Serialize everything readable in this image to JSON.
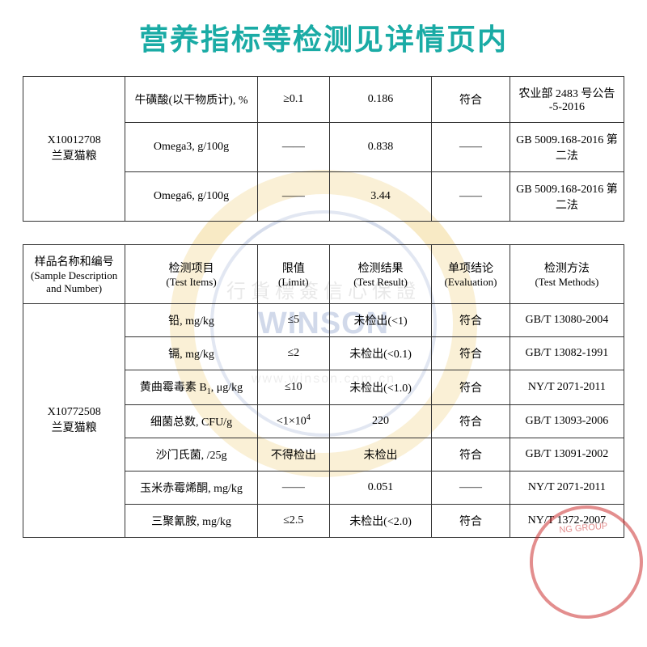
{
  "title": {
    "text": "营养指标等检测见详情页内",
    "color": "#1aaba5"
  },
  "watermark": {
    "logo_text": "WINSON",
    "chinese_text": "行貨標簽信心保證",
    "url_text": "www.winson.com.cn"
  },
  "seal": {
    "text_top": "NG   GROUP"
  },
  "table1": {
    "sample": {
      "id": "X10012708",
      "name": "兰夏猫粮"
    },
    "rows": [
      {
        "item": "牛磺酸(以干物质计), %",
        "limit": "≥0.1",
        "result": "0.186",
        "eval": "符合",
        "method": "农业部 2483 号公告 -5-2016"
      },
      {
        "item": "Omega3, g/100g",
        "limit": "——",
        "result": "0.838",
        "eval": "——",
        "method": "GB 5009.168-2016 第二法"
      },
      {
        "item": "Omega6, g/100g",
        "limit": "——",
        "result": "3.44",
        "eval": "——",
        "method": "GB 5009.168-2016 第二法"
      }
    ]
  },
  "table2": {
    "headers": {
      "sample_cn": "样品名称和编号",
      "sample_en": "(Sample Description and Number)",
      "item_cn": "检测项目",
      "item_en": "(Test Items)",
      "limit_cn": "限值",
      "limit_en": "(Limit)",
      "result_cn": "检测结果",
      "result_en": "(Test Result)",
      "eval_cn": "单项结论",
      "eval_en": "(Evaluation)",
      "method_cn": "检测方法",
      "method_en": "(Test Methods)"
    },
    "sample": {
      "id": "X10772508",
      "name": "兰夏猫粮"
    },
    "rows": [
      {
        "item": "铅, mg/kg",
        "limit": "≤5",
        "result": "未检出(<1)",
        "eval": "符合",
        "method": "GB/T 13080-2004"
      },
      {
        "item": "镉, mg/kg",
        "limit": "≤2",
        "result": "未检出(<0.1)",
        "eval": "符合",
        "method": "GB/T 13082-1991"
      },
      {
        "item_html": "黄曲霉毒素 B<sub>1</sub>, μg/kg",
        "limit": "≤10",
        "result": "未检出(<1.0)",
        "eval": "符合",
        "method": "NY/T 2071-2011"
      },
      {
        "item": "细菌总数, CFU/g",
        "limit_html": "<1×10<sup>4</sup>",
        "result": "220",
        "eval": "符合",
        "method": "GB/T 13093-2006"
      },
      {
        "item": "沙门氏菌, /25g",
        "limit": "不得检出",
        "result": "未检出",
        "eval": "符合",
        "method": "GB/T 13091-2002"
      },
      {
        "item": "玉米赤霉烯酮, mg/kg",
        "limit": "——",
        "result": "0.051",
        "eval": "——",
        "method": "NY/T 2071-2011"
      },
      {
        "item": "三聚氰胺, mg/kg",
        "limit": "≤2.5",
        "result": "未检出(<2.0)",
        "eval": "符合",
        "method": "NY/T 1372-2007"
      }
    ]
  },
  "colors": {
    "title": "#1aaba5",
    "border": "#333333",
    "watermark_ring": "rgba(235,195,90,0.35)",
    "watermark_logo": "rgba(70,100,170,0.35)",
    "seal": "rgba(200,30,30,0.5)"
  }
}
